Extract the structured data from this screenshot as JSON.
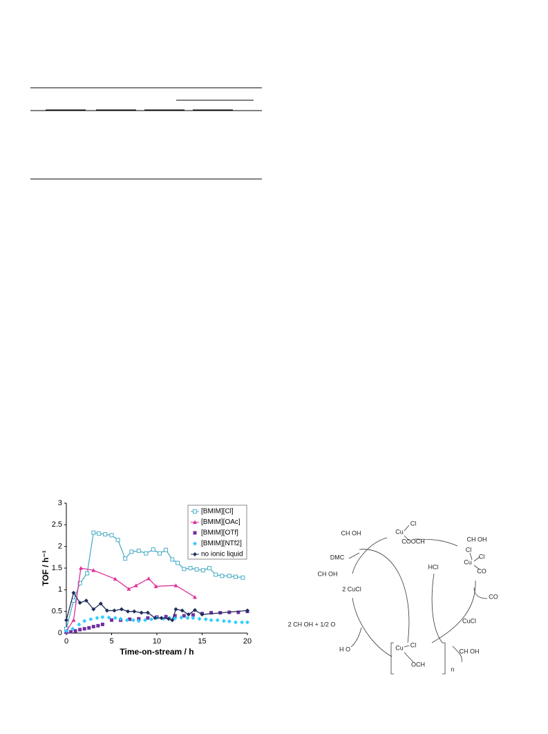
{
  "chart_data": {
    "type": "scatter",
    "x_label": "Time-on-stream / h",
    "y_label": "TOF / h⁻¹",
    "xlim": [
      0,
      20
    ],
    "xticks": [
      0,
      5,
      10,
      15,
      20
    ],
    "ylim": [
      0,
      3
    ],
    "yticks": [
      0,
      0.5,
      1,
      1.5,
      2,
      2.5,
      3
    ],
    "legend": "upper right",
    "series": [
      {
        "name": "[BMIM][Cl]",
        "color": "#4bacc6",
        "marker": "open-square",
        "line": true,
        "x": [
          0,
          0.8,
          1.5,
          2.3,
          3,
          3.6,
          4.3,
          5,
          5.7,
          6.5,
          7.2,
          8,
          8.8,
          9.6,
          10.3,
          11,
          11.7,
          12.3,
          13,
          13.7,
          14.4,
          15.1,
          15.8,
          16.5,
          17.2,
          18,
          18.7,
          19.5
        ],
        "values": [
          0.1,
          0.75,
          1.15,
          1.38,
          2.32,
          2.3,
          2.28,
          2.26,
          2.15,
          1.72,
          1.88,
          1.9,
          1.84,
          1.93,
          1.84,
          1.92,
          1.7,
          1.62,
          1.48,
          1.5,
          1.47,
          1.45,
          1.5,
          1.35,
          1.32,
          1.32,
          1.3,
          1.28
        ]
      },
      {
        "name": "[BMIM][OAc]",
        "color": "#e0309a",
        "marker": "triangle",
        "line": true,
        "x": [
          0,
          0.8,
          1.6,
          3,
          5.4,
          6.9,
          7.7,
          9.1,
          9.9,
          12.1,
          14.2
        ],
        "values": [
          0.05,
          0.3,
          1.5,
          1.45,
          1.25,
          1.02,
          1.1,
          1.26,
          1.08,
          1.1,
          0.83
        ]
      },
      {
        "name": "[BMIM][OTf]",
        "color": "#7030a0",
        "marker": "square",
        "line": false,
        "x": [
          0,
          0.5,
          1,
          1.5,
          2,
          2.5,
          3,
          3.5,
          4,
          5,
          6,
          7,
          8,
          9,
          10,
          11,
          12,
          13,
          14,
          15,
          16,
          17,
          18,
          19,
          20
        ],
        "values": [
          0.02,
          0.03,
          0.05,
          0.08,
          0.1,
          0.12,
          0.15,
          0.17,
          0.2,
          0.3,
          0.3,
          0.32,
          0.33,
          0.35,
          0.37,
          0.38,
          0.4,
          0.4,
          0.42,
          0.45,
          0.47,
          0.47,
          0.48,
          0.48,
          0.5
        ]
      },
      {
        "name": "[BMIM][NTf2]",
        "color": "#33ccff",
        "marker": "diamond",
        "line": false,
        "x": [
          0,
          0.7,
          1.4,
          2,
          2.7,
          3.4,
          4,
          4.7,
          5.4,
          6,
          6.7,
          7.4,
          8,
          8.7,
          9.4,
          10,
          10.7,
          11.4,
          12,
          12.7,
          13.4,
          14,
          14.7,
          15.4,
          16,
          16.7,
          17.4,
          18,
          18.7,
          19.4,
          20
        ],
        "values": [
          0.05,
          0.1,
          0.2,
          0.28,
          0.32,
          0.35,
          0.37,
          0.36,
          0.35,
          0.33,
          0.3,
          0.3,
          0.28,
          0.3,
          0.32,
          0.35,
          0.33,
          0.35,
          0.34,
          0.36,
          0.35,
          0.35,
          0.33,
          0.32,
          0.3,
          0.3,
          0.28,
          0.27,
          0.25,
          0.25,
          0.25
        ]
      },
      {
        "name": "no ionic liquid",
        "color": "#1f2d5c",
        "marker": "diamond",
        "line": true,
        "x": [
          0,
          0.8,
          1.5,
          2.2,
          3,
          3.8,
          4.5,
          5.3,
          6.1,
          6.8,
          7.5,
          8.3,
          9,
          9.8,
          10.5,
          11.3,
          11.7,
          12.1,
          12.8,
          13.5,
          14.2,
          15,
          20
        ],
        "values": [
          0.3,
          0.93,
          0.7,
          0.75,
          0.55,
          0.68,
          0.52,
          0.52,
          0.55,
          0.5,
          0.5,
          0.47,
          0.47,
          0.35,
          0.35,
          0.33,
          0.3,
          0.55,
          0.52,
          0.43,
          0.53,
          0.43,
          0.52
        ]
      }
    ]
  },
  "diagram": {
    "labels": [
      "Cu",
      "Cl",
      "COOCH",
      "CH OH",
      "CH OH",
      "DMC",
      "CH OH",
      "2 CuCl",
      "Cl",
      "Cl",
      "Cu",
      "CO",
      "HCl",
      "CO",
      "CuCl",
      "2 CH OH + 1/2 O",
      "H O",
      "Cu",
      "Cl",
      "OCH",
      "n",
      "CH OH"
    ]
  }
}
